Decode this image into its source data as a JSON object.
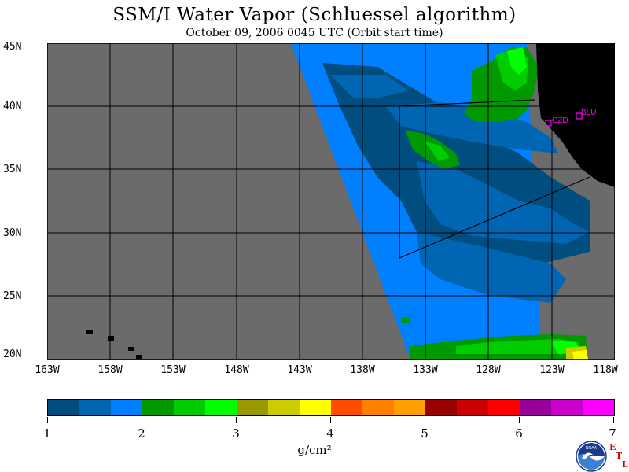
{
  "header": {
    "title": "SSM/I Water Vapor (Schluessel algorithm)",
    "subtitle": "October 09, 2006  0045 UTC  (Orbit start time)"
  },
  "map": {
    "lat_labels": [
      "45N",
      "40N",
      "35N",
      "30N",
      "25N",
      "20N"
    ],
    "lon_labels": [
      "163W",
      "158W",
      "153W",
      "148W",
      "143W",
      "138W",
      "133W",
      "128W",
      "123W",
      "118W"
    ],
    "stations": [
      {
        "id": "CZD",
        "label": "CZD"
      },
      {
        "id": "BLU",
        "label": "BLU"
      }
    ],
    "colors": {
      "no_data": "#6b6b6b",
      "land": "#000000",
      "station": "#ff00ff"
    }
  },
  "colorbar": {
    "tick_labels": [
      "1",
      "2",
      "3",
      "4",
      "5",
      "6",
      "7"
    ],
    "units": "g/cm²",
    "colors": [
      "#004d80",
      "#0066b3",
      "#0080ff",
      "#009900",
      "#00cc00",
      "#00ff00",
      "#999900",
      "#cccc00",
      "#ffff00",
      "#ff4d00",
      "#ff8000",
      "#ffa000",
      "#990000",
      "#cc0000",
      "#ff0000",
      "#990099",
      "#cc00cc",
      "#ff00ff"
    ]
  },
  "logo": {
    "noaa_text": "NOAA",
    "etl_letters": [
      "E",
      "T",
      "L"
    ]
  }
}
